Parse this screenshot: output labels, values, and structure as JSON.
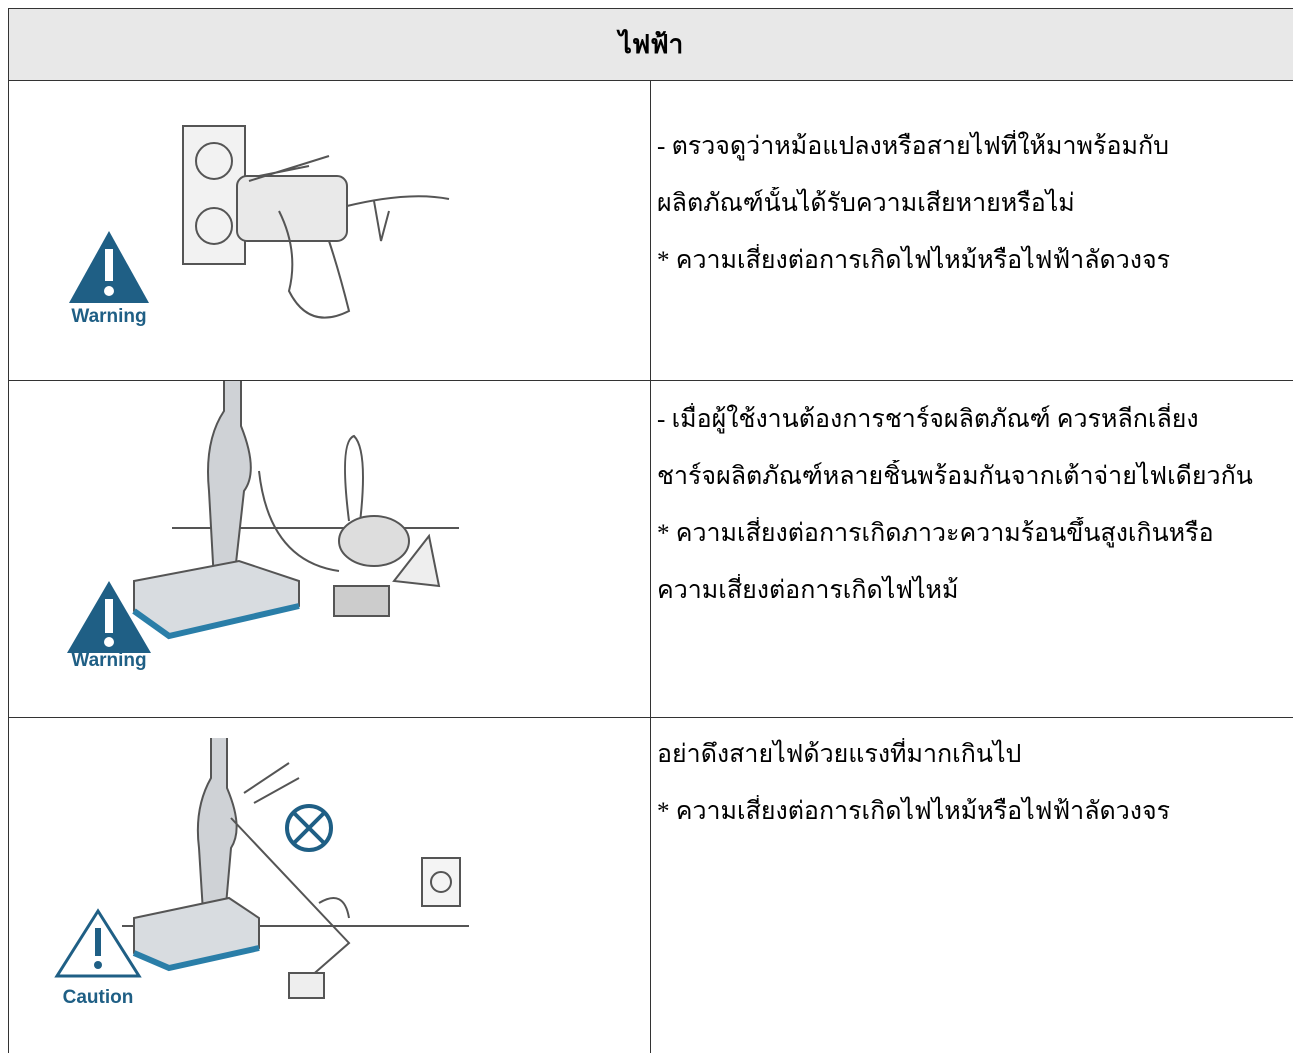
{
  "header": {
    "title": "ไฟฟ้า"
  },
  "rows": [
    {
      "icon_label": "Warning",
      "lines": [
        "- ตรวจดูว่าหม้อแปลงหรือสายไฟที่ให้มาพร้อมกับ",
        "ผลิตภัณฑ์นั้นได้รับความเสียหายหรือไม่",
        "* ความเสี่ยงต่อการเกิดไฟไหม้หรือไฟฟ้าลัดวงจร"
      ]
    },
    {
      "icon_label": "Warning",
      "lines": [
        "- เมื่อผู้ใช้งานต้องการชาร์จผลิตภัณฑ์ ควรหลีกเลี่ยง",
        "ชาร์จผลิตภัณฑ์หลายชิ้นพร้อมกันจากเต้าจ่ายไฟเดียวกัน",
        "* ความเสี่ยงต่อการเกิดภาวะความร้อนขึ้นสูงเกินหรือ",
        "ความเสี่ยงต่อการเกิดไฟไหม้"
      ]
    },
    {
      "icon_label": "Caution",
      "lines": [
        "อย่าดึงสายไฟด้วยแรงที่มากเกินไป",
        "* ความเสี่ยงต่อการเกิดไฟไหม้หรือไฟฟ้าลัดวงจร"
      ]
    }
  ]
}
